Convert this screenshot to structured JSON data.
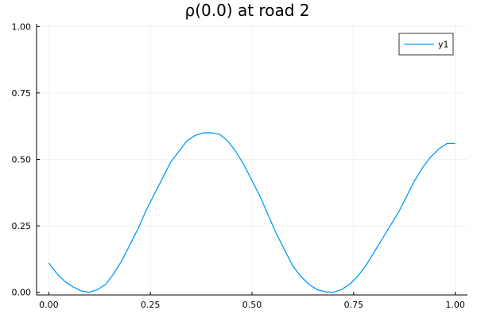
{
  "chart_data": {
    "type": "line",
    "title": "ρ(0.0) at road 2",
    "xlabel": "",
    "ylabel": "",
    "xlim": [
      -0.03,
      1.03
    ],
    "ylim": [
      -0.01,
      1.01
    ],
    "x_ticks": [
      0.0,
      0.25,
      0.5,
      0.75,
      1.0
    ],
    "x_tick_labels": [
      "0.00",
      "0.25",
      "0.50",
      "0.75",
      "1.00"
    ],
    "y_ticks": [
      0.0,
      0.25,
      0.5,
      0.75,
      1.0
    ],
    "y_tick_labels": [
      "0.00",
      "0.25",
      "0.50",
      "0.75",
      "1.00"
    ],
    "grid": true,
    "legend_position": "top-right",
    "series": [
      {
        "name": "y1",
        "color": "#009af9",
        "x": [
          0.0,
          0.02,
          0.04,
          0.06,
          0.08,
          0.1,
          0.12,
          0.14,
          0.16,
          0.18,
          0.2,
          0.22,
          0.24,
          0.26,
          0.28,
          0.3,
          0.32,
          0.34,
          0.36,
          0.38,
          0.4,
          0.42,
          0.44,
          0.46,
          0.48,
          0.5,
          0.52,
          0.54,
          0.56,
          0.58,
          0.6,
          0.62,
          0.64,
          0.66,
          0.68,
          0.7,
          0.72,
          0.74,
          0.76,
          0.78,
          0.8,
          0.82,
          0.84,
          0.86,
          0.88,
          0.9,
          0.92,
          0.94,
          0.96,
          0.98,
          1.0
        ],
        "y": [
          0.11,
          0.07,
          0.04,
          0.02,
          0.005,
          0.0,
          0.01,
          0.03,
          0.07,
          0.12,
          0.18,
          0.24,
          0.31,
          0.37,
          0.43,
          0.49,
          0.53,
          0.57,
          0.59,
          0.6,
          0.6,
          0.595,
          0.57,
          0.53,
          0.48,
          0.42,
          0.36,
          0.29,
          0.22,
          0.16,
          0.1,
          0.06,
          0.03,
          0.01,
          0.002,
          0.0,
          0.01,
          0.03,
          0.06,
          0.1,
          0.15,
          0.2,
          0.25,
          0.3,
          0.36,
          0.42,
          0.47,
          0.51,
          0.54,
          0.56,
          0.56
        ]
      }
    ]
  }
}
